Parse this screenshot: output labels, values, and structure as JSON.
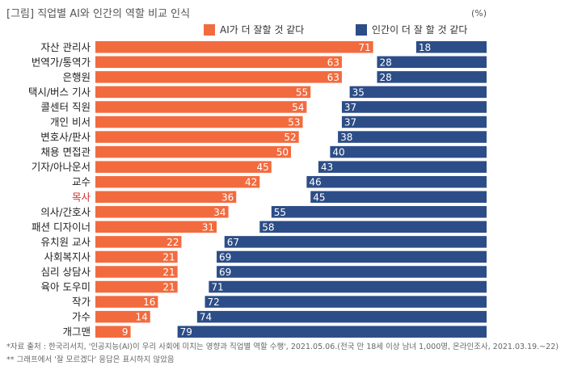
{
  "title": "[그림] 직업별 AI와 인간의 역할 비교 인식",
  "unit": "(%)",
  "footnotes": [
    "*자료 출처 : 한국리서치, '인공지능(AI)이 우리 사회에 미치는 영향과 직업별 역할 수행', 2021.05.06.(전국 만 18세 이상 남녀 1,000명, 온라인조사, 2021.03.19.~22)",
    "** 그래프에서 '잘 모르겠다' 응답은 표시하지 않았음"
  ],
  "colors": {
    "ai": "#f26b3e",
    "human": "#2c4d87",
    "highlight_label": "#d32f2f",
    "label": "#222222"
  },
  "chart_data": {
    "type": "bar",
    "orientation": "horizontal",
    "legend_position": "top-right",
    "categories": [
      "자산 관리사",
      "번역가/통역가",
      "은행원",
      "택시/버스 기사",
      "콜센터 직원",
      "개인 비서",
      "변호사/판사",
      "채용 면접관",
      "기자/아나운서",
      "교수",
      "목사",
      "의사/간호사",
      "패션 디자이너",
      "유치원 교사",
      "사회복지사",
      "심리 상담사",
      "육아 도우미",
      "작가",
      "가수",
      "개그맨"
    ],
    "highlighted_category": "목사",
    "series": [
      {
        "name": "AI가 더 잘할 것 같다",
        "values": [
          71,
          63,
          63,
          55,
          54,
          53,
          52,
          50,
          45,
          42,
          36,
          34,
          31,
          22,
          21,
          21,
          21,
          16,
          14,
          9
        ]
      },
      {
        "name": "인간이 더 잘 할 것 같다",
        "values": [
          18,
          28,
          28,
          35,
          37,
          37,
          38,
          40,
          43,
          46,
          45,
          55,
          58,
          67,
          69,
          69,
          71,
          72,
          74,
          79
        ]
      }
    ]
  }
}
